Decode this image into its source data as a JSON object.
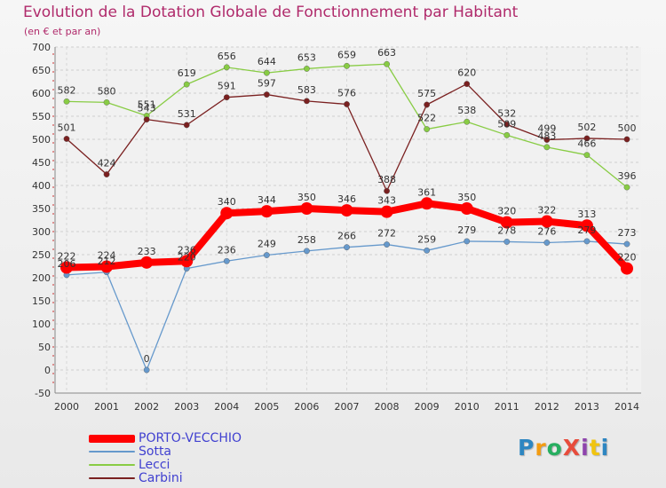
{
  "title": "Evolution de la Dotation Globale de Fonctionnement par Habitant",
  "subtitle": "(en € et par an)",
  "logo": {
    "text": "ProXiti",
    "letters": [
      {
        "ch": "P",
        "color": "#2e86c1"
      },
      {
        "ch": "r",
        "color": "#f39c12"
      },
      {
        "ch": "o",
        "color": "#27ae60"
      },
      {
        "ch": "X",
        "color": "#e74c3c"
      },
      {
        "ch": "i",
        "color": "#8e44ad"
      },
      {
        "ch": "t",
        "color": "#f1c40f"
      },
      {
        "ch": "i",
        "color": "#2e86c1"
      }
    ]
  },
  "chart_data": {
    "type": "line",
    "title": "Evolution de la Dotation Globale de Fonctionnement par Habitant",
    "subtitle": "(en € et par an)",
    "x": [
      "2000",
      "2001",
      "2002",
      "2003",
      "2004",
      "2005",
      "2006",
      "2007",
      "2008",
      "2009",
      "2010",
      "2011",
      "2012",
      "2013",
      "2014"
    ],
    "yticks": [
      -50,
      0,
      50,
      100,
      150,
      200,
      250,
      300,
      350,
      400,
      450,
      500,
      550,
      600,
      650,
      700
    ],
    "ylim": [
      -50,
      700
    ],
    "grid": "horizontal",
    "legend_position": "bottom-left",
    "series": [
      {
        "name": "PORTO-VECCHIO",
        "color": "#ff0000",
        "width": "thick",
        "values": [
          222,
          224,
          233,
          236,
          340,
          344,
          350,
          346,
          343,
          361,
          350,
          320,
          322,
          313,
          220
        ],
        "labels": [
          "222",
          "224",
          "233",
          "236",
          "340",
          "344",
          "350",
          "346",
          "343",
          "361",
          "350",
          "320",
          "322",
          "313",
          "220"
        ]
      },
      {
        "name": "Sotta",
        "color": "#6699cc",
        "width": "thin",
        "values": [
          206,
          212,
          0,
          220,
          236,
          249,
          258,
          266,
          272,
          259,
          279,
          278,
          276,
          279,
          273
        ],
        "labels": [
          "206",
          "212",
          "0",
          "220",
          "236",
          "249",
          "258",
          "266",
          "272",
          "259",
          "279",
          "278",
          "276",
          "279",
          "273"
        ]
      },
      {
        "name": "Lecci",
        "color": "#88cc44",
        "width": "thin",
        "values": [
          582,
          580,
          551,
          619,
          656,
          644,
          653,
          659,
          663,
          522,
          538,
          509,
          483,
          466,
          396
        ],
        "labels": [
          "582",
          "580",
          "551",
          "619",
          "656",
          "644",
          "653",
          "659",
          "663",
          "522",
          "538",
          "509",
          "483",
          "466",
          "396"
        ]
      },
      {
        "name": "Carbini",
        "color": "#7a2020",
        "width": "thin",
        "values": [
          501,
          424,
          543,
          531,
          591,
          597,
          583,
          576,
          388,
          575,
          620,
          532,
          499,
          502,
          500
        ],
        "labels": [
          "501",
          "424",
          "543",
          "531",
          "591",
          "597",
          "583",
          "576",
          "388",
          "575",
          "620",
          "532",
          "499",
          "502",
          "500"
        ]
      }
    ]
  }
}
